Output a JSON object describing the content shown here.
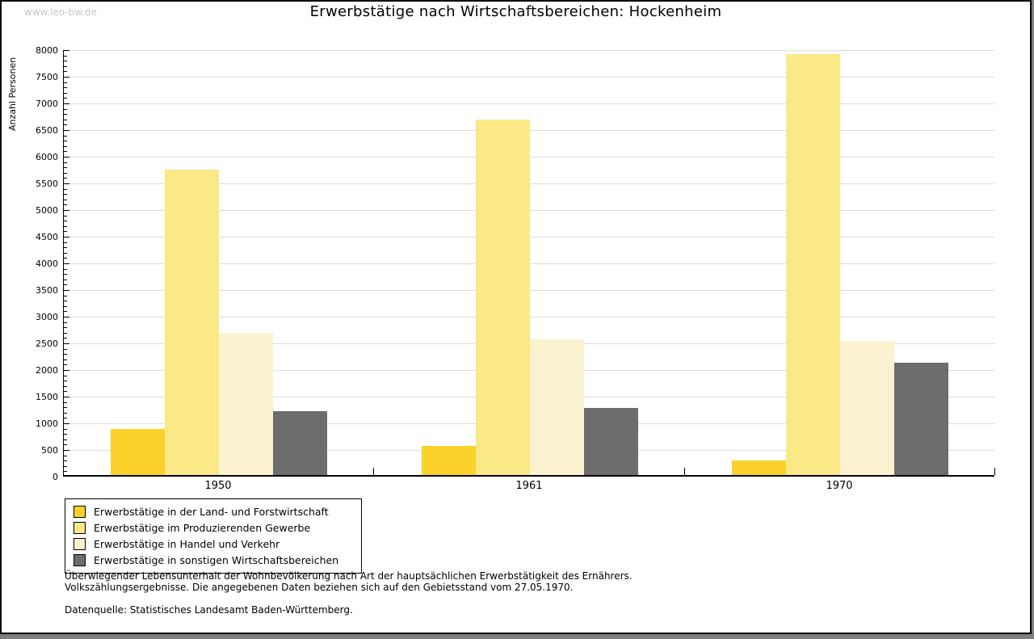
{
  "page": {
    "watermark": "www.leo-bw.de"
  },
  "chart_data": {
    "type": "bar",
    "title": "Erwerbstätige nach Wirtschaftsbereichen: Hockenheim",
    "ylabel": "Anzahl Personen",
    "xlabel": "",
    "categories": [
      "1950",
      "1961",
      "1970"
    ],
    "series": [
      {
        "name": "Erwerbstätige in der Land- und Forstwirtschaft",
        "color": "#fbd12b",
        "values": [
          860,
          550,
          270
        ]
      },
      {
        "name": "Erwerbstätige im Produzierenden Gewerbe",
        "color": "#fbe886",
        "values": [
          5730,
          6670,
          7900
        ]
      },
      {
        "name": "Erwerbstätige in Handel und Verkehr",
        "color": "#fbf3cf",
        "values": [
          2660,
          2540,
          2520
        ]
      },
      {
        "name": "Erwerbstätige in sonstigen Wirtschaftsbereichen",
        "color": "#6d6d6d",
        "values": [
          1200,
          1260,
          2100
        ]
      }
    ],
    "ylim": [
      0,
      8000
    ],
    "ytick_step": 500,
    "yminor_step": 100,
    "grid": true,
    "gridline_color": "#dcdcdc",
    "legend_position": "bottom-left"
  },
  "footer": {
    "note_line1": "Überwiegender Lebensunterhalt der Wohnbevölkerung nach Art der hauptsächlichen Erwerbstätigkeit des Ernährers.",
    "note_line2": "Volkszählungsergebnisse. Die angegebenen Daten beziehen sich auf den Gebietsstand vom 27.05.1970.",
    "datasource": "Datenquelle: Statistisches Landesamt Baden-Württemberg."
  }
}
